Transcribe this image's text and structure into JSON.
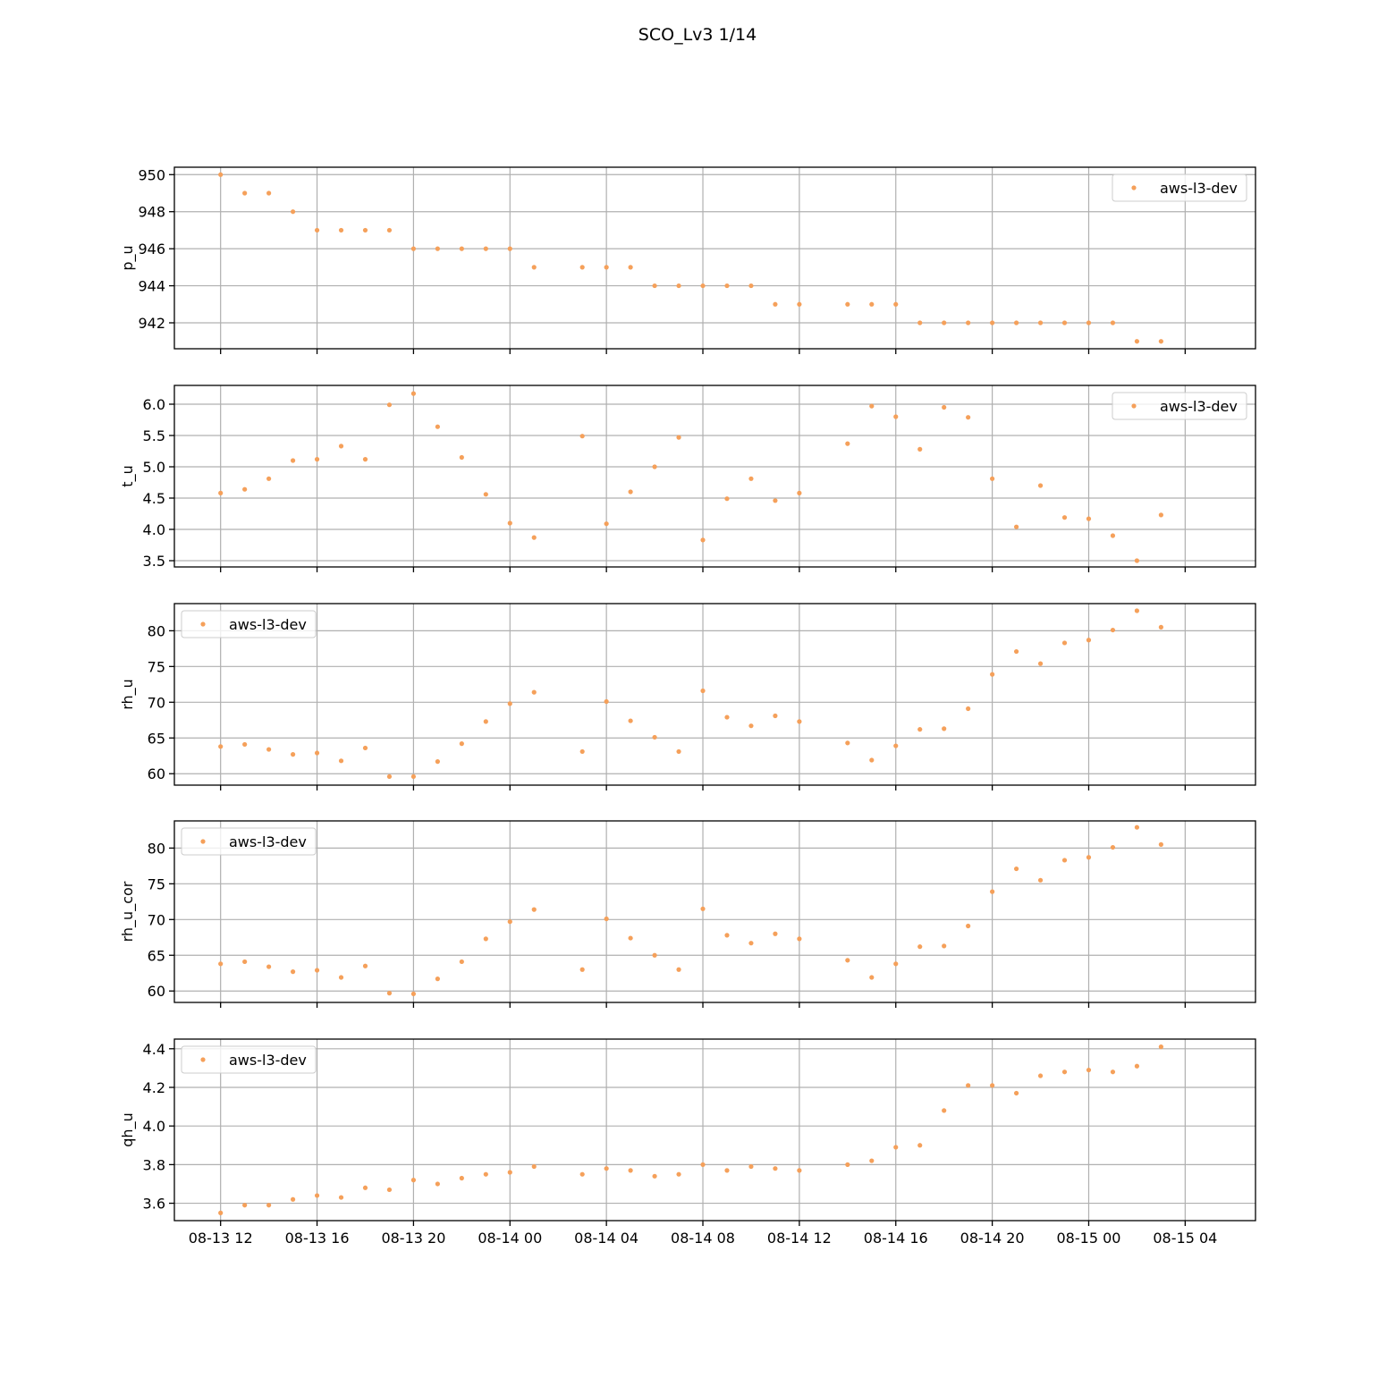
{
  "figure": {
    "title": "SCO_Lv3 1/14"
  },
  "colors": {
    "series": "#f5a05a",
    "grid": "#b0b0b0",
    "axis": "#000000"
  },
  "chart_data": {
    "type": "scatter",
    "shared_x_axis": true,
    "grid": true,
    "x_range": [
      "2024-08-13T10:05",
      "2024-08-15T06:55"
    ],
    "x_ticks": [
      {
        "t": "2024-08-13T12:00",
        "label": "08-13 12"
      },
      {
        "t": "2024-08-13T16:00",
        "label": "08-13 16"
      },
      {
        "t": "2024-08-13T20:00",
        "label": "08-13 20"
      },
      {
        "t": "2024-08-14T00:00",
        "label": "08-14 00"
      },
      {
        "t": "2024-08-14T04:00",
        "label": "08-14 04"
      },
      {
        "t": "2024-08-14T08:00",
        "label": "08-14 08"
      },
      {
        "t": "2024-08-14T12:00",
        "label": "08-14 12"
      },
      {
        "t": "2024-08-14T16:00",
        "label": "08-14 16"
      },
      {
        "t": "2024-08-14T20:00",
        "label": "08-14 20"
      },
      {
        "t": "2024-08-15T00:00",
        "label": "08-15 00"
      },
      {
        "t": "2024-08-15T04:00",
        "label": "08-15 04"
      }
    ],
    "x": [
      "2024-08-13T12:00",
      "2024-08-13T13:00",
      "2024-08-13T14:00",
      "2024-08-13T15:00",
      "2024-08-13T16:00",
      "2024-08-13T17:00",
      "2024-08-13T18:00",
      "2024-08-13T19:00",
      "2024-08-13T20:00",
      "2024-08-13T21:00",
      "2024-08-13T22:00",
      "2024-08-13T23:00",
      "2024-08-14T00:00",
      "2024-08-14T01:00",
      "2024-08-14T02:00",
      "2024-08-14T03:00",
      "2024-08-14T04:00",
      "2024-08-14T05:00",
      "2024-08-14T06:00",
      "2024-08-14T07:00",
      "2024-08-14T08:00",
      "2024-08-14T09:00",
      "2024-08-14T10:00",
      "2024-08-14T11:00",
      "2024-08-14T12:00",
      "2024-08-14T13:00",
      "2024-08-14T14:00",
      "2024-08-14T15:00",
      "2024-08-14T16:00",
      "2024-08-14T17:00",
      "2024-08-14T18:00",
      "2024-08-14T19:00",
      "2024-08-14T20:00",
      "2024-08-14T21:00",
      "2024-08-14T22:00",
      "2024-08-14T23:00",
      "2024-08-15T00:00",
      "2024-08-15T01:00",
      "2024-08-15T02:00",
      "2024-08-15T03:00"
    ],
    "panels": [
      {
        "ylabel": "p_u",
        "ylim": [
          940.6,
          950.4
        ],
        "yticks": [
          942,
          944,
          946,
          948,
          950
        ],
        "ytick_labels": [
          "942",
          "944",
          "946",
          "948",
          "950"
        ],
        "legend": "top-right",
        "series": [
          {
            "name": "aws-l3-dev",
            "values": [
              950,
              949,
              949,
              948,
              947,
              947,
              947,
              947,
              946,
              946,
              946,
              946,
              946,
              945,
              null,
              945,
              945,
              945,
              944,
              944,
              944,
              944,
              944,
              943,
              943,
              null,
              943,
              943,
              943,
              942,
              942,
              942,
              942,
              942,
              942,
              942,
              942,
              942,
              941,
              941
            ]
          }
        ]
      },
      {
        "ylabel": "t_u",
        "ylim": [
          3.4,
          6.3
        ],
        "yticks": [
          3.5,
          4.0,
          4.5,
          5.0,
          5.5,
          6.0
        ],
        "ytick_labels": [
          "3.5",
          "4.0",
          "4.5",
          "5.0",
          "5.5",
          "6.0"
        ],
        "legend": "top-right",
        "series": [
          {
            "name": "aws-l3-dev",
            "values": [
              4.58,
              4.64,
              4.81,
              5.1,
              5.12,
              5.33,
              5.12,
              5.99,
              6.17,
              5.64,
              5.15,
              4.56,
              4.1,
              3.87,
              null,
              5.49,
              4.09,
              4.6,
              5.0,
              5.47,
              3.83,
              4.49,
              4.81,
              4.46,
              4.58,
              null,
              5.37,
              5.97,
              5.8,
              5.28,
              5.95,
              5.79,
              4.81,
              4.04,
              4.7,
              4.19,
              4.17,
              3.9,
              3.5,
              4.23
            ]
          }
        ]
      },
      {
        "ylabel": "rh_u",
        "ylim": [
          58.4,
          83.8
        ],
        "yticks": [
          60,
          65,
          70,
          75,
          80
        ],
        "ytick_labels": [
          "60",
          "65",
          "70",
          "75",
          "80"
        ],
        "legend": "top-left",
        "series": [
          {
            "name": "aws-l3-dev",
            "values": [
              63.8,
              64.1,
              63.4,
              62.7,
              62.9,
              61.8,
              63.6,
              59.6,
              59.6,
              61.7,
              64.2,
              67.3,
              69.8,
              71.4,
              null,
              63.1,
              70.1,
              67.4,
              65.1,
              63.1,
              71.6,
              67.9,
              66.7,
              68.1,
              67.3,
              null,
              64.3,
              61.9,
              63.9,
              66.2,
              66.3,
              69.1,
              73.9,
              77.1,
              75.4,
              78.3,
              78.7,
              80.1,
              82.8,
              80.5
            ]
          }
        ]
      },
      {
        "ylabel": "rh_u_cor",
        "ylim": [
          58.4,
          83.8
        ],
        "yticks": [
          60,
          65,
          70,
          75,
          80
        ],
        "ytick_labels": [
          "60",
          "65",
          "70",
          "75",
          "80"
        ],
        "legend": "top-left",
        "series": [
          {
            "name": "aws-l3-dev",
            "values": [
              63.8,
              64.1,
              63.4,
              62.7,
              62.9,
              61.9,
              63.5,
              59.7,
              59.6,
              61.7,
              64.1,
              67.3,
              69.7,
              71.4,
              null,
              63.0,
              70.1,
              67.4,
              65.0,
              63.0,
              71.5,
              67.8,
              66.7,
              68.0,
              67.3,
              null,
              64.3,
              61.9,
              63.8,
              66.2,
              66.3,
              69.1,
              73.9,
              77.1,
              75.5,
              78.3,
              78.7,
              80.1,
              82.9,
              80.5
            ]
          }
        ]
      },
      {
        "ylabel": "qh_u",
        "ylim": [
          3.51,
          4.45
        ],
        "yticks": [
          3.6,
          3.8,
          4.0,
          4.2,
          4.4
        ],
        "ytick_labels": [
          "3.6",
          "3.8",
          "4.0",
          "4.2",
          "4.4"
        ],
        "legend": "top-left",
        "series": [
          {
            "name": "aws-l3-dev",
            "values": [
              3.55,
              3.59,
              3.59,
              3.62,
              3.64,
              3.63,
              3.68,
              3.67,
              3.72,
              3.7,
              3.73,
              3.75,
              3.76,
              3.79,
              null,
              3.75,
              3.78,
              3.77,
              3.74,
              3.75,
              3.8,
              3.77,
              3.79,
              3.78,
              3.77,
              null,
              3.8,
              3.82,
              3.89,
              3.9,
              4.08,
              4.21,
              4.21,
              4.17,
              4.26,
              4.28,
              4.29,
              4.28,
              4.31,
              4.41
            ]
          }
        ]
      }
    ]
  }
}
